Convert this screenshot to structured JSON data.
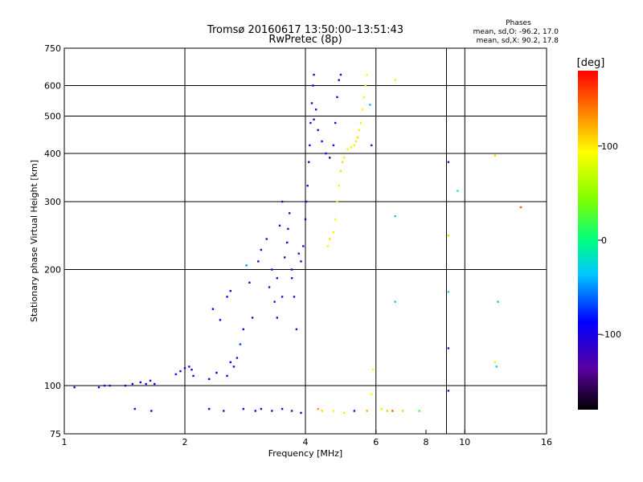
{
  "header": {
    "title_line1": "Tromsø 20160617 13:50:00–13:51:43",
    "title_line2": "RwPretec (8p)",
    "phases_title": "Phases",
    "phases_o": "mean, sd,O: -96.2, 17.0",
    "phases_x": "mean, sd,X:  90.2, 17.8"
  },
  "colorbar": {
    "unit_label": "[deg]",
    "tick_labels": [
      "100",
      "0",
      "-100"
    ],
    "tick_values": [
      100,
      0,
      -100
    ],
    "range": [
      -180,
      180
    ]
  },
  "chart_data": {
    "type": "scatter",
    "title": "Tromsø 20160617 13:50:00–13:51:43",
    "subtitle": "RwPretec (8p)",
    "xlabel": "Frequency [MHz]",
    "ylabel": "Stationary phase Virtual Height [km]",
    "xscale": "log",
    "yscale": "log",
    "xlim": [
      1,
      16
    ],
    "ylim": [
      75,
      750
    ],
    "xticks": [
      1,
      2,
      4,
      6,
      8,
      10,
      16
    ],
    "yticks": [
      75,
      100,
      200,
      300,
      400,
      500,
      600,
      750
    ],
    "xgrid": [
      2,
      4,
      6,
      9,
      10
    ],
    "ygrid": [
      100,
      200,
      300,
      400,
      500,
      600
    ],
    "color_by": "phase [deg]",
    "series": [
      {
        "values": [
          [
            1.06,
            99,
            -105
          ],
          [
            1.22,
            99,
            -105
          ],
          [
            1.26,
            100,
            -110
          ],
          [
            1.3,
            100,
            -100
          ],
          [
            1.42,
            100,
            -105
          ],
          [
            1.48,
            101,
            -100
          ],
          [
            1.55,
            102,
            -95
          ],
          [
            1.6,
            101,
            -100
          ],
          [
            1.64,
            103,
            -110
          ],
          [
            1.68,
            101,
            -100
          ],
          [
            1.5,
            87,
            -115
          ],
          [
            1.65,
            86,
            -100
          ],
          [
            1.9,
            107,
            -100
          ],
          [
            1.95,
            109,
            -105
          ],
          [
            2.0,
            111,
            -95
          ],
          [
            2.05,
            112,
            -105
          ],
          [
            2.08,
            110,
            -100
          ],
          [
            2.1,
            106,
            -110
          ],
          [
            2.3,
            104,
            -100
          ],
          [
            2.4,
            108,
            -95
          ],
          [
            2.6,
            115,
            -85
          ],
          [
            2.7,
            118,
            -80
          ],
          [
            2.55,
            106,
            -105
          ],
          [
            2.65,
            112,
            -100
          ],
          [
            2.35,
            158,
            -90
          ],
          [
            2.45,
            148,
            -85
          ],
          [
            2.55,
            170,
            -100
          ],
          [
            2.6,
            176,
            -95
          ],
          [
            2.75,
            128,
            -70
          ],
          [
            2.8,
            140,
            -90
          ],
          [
            2.9,
            185,
            -100
          ],
          [
            2.95,
            150,
            -105
          ],
          [
            2.85,
            205,
            -50
          ],
          [
            3.05,
            210,
            -110
          ],
          [
            3.1,
            225,
            -115
          ],
          [
            3.2,
            240,
            -115
          ],
          [
            3.25,
            180,
            -120
          ],
          [
            3.3,
            200,
            -115
          ],
          [
            3.35,
            165,
            -120
          ],
          [
            3.4,
            190,
            -120
          ],
          [
            3.45,
            260,
            -120
          ],
          [
            3.5,
            300,
            -115
          ],
          [
            3.55,
            215,
            -120
          ],
          [
            3.6,
            235,
            -115
          ],
          [
            3.62,
            255,
            -120
          ],
          [
            3.65,
            280,
            -115
          ],
          [
            3.7,
            200,
            -110
          ],
          [
            3.75,
            170,
            -120
          ],
          [
            3.8,
            140,
            -120
          ],
          [
            3.85,
            220,
            -115
          ],
          [
            3.9,
            210,
            -110
          ],
          [
            3.95,
            230,
            -105
          ],
          [
            4.0,
            270,
            -105
          ],
          [
            4.02,
            300,
            -105
          ],
          [
            4.05,
            330,
            -100
          ],
          [
            4.08,
            380,
            -100
          ],
          [
            4.1,
            420,
            -100
          ],
          [
            4.12,
            480,
            -105
          ],
          [
            4.15,
            540,
            -105
          ],
          [
            4.18,
            600,
            -100
          ],
          [
            4.2,
            640,
            -105
          ],
          [
            4.25,
            520,
            -100
          ],
          [
            4.3,
            460,
            -100
          ],
          [
            4.4,
            430,
            -105
          ],
          [
            4.5,
            400,
            -100
          ],
          [
            4.6,
            390,
            -100
          ],
          [
            4.7,
            420,
            -105
          ],
          [
            4.75,
            480,
            -100
          ],
          [
            4.8,
            560,
            -105
          ],
          [
            4.85,
            620,
            -100
          ],
          [
            4.9,
            640,
            -105
          ],
          [
            4.2,
            490,
            -100
          ],
          [
            3.5,
            170,
            -120
          ],
          [
            3.4,
            150,
            -115
          ],
          [
            3.7,
            190,
            -110
          ],
          [
            4.55,
            230,
            100
          ],
          [
            4.6,
            240,
            105
          ],
          [
            4.7,
            250,
            100
          ],
          [
            4.75,
            270,
            95
          ],
          [
            4.8,
            300,
            100
          ],
          [
            4.85,
            330,
            100
          ],
          [
            4.9,
            360,
            105
          ],
          [
            5.0,
            390,
            100
          ],
          [
            5.1,
            410,
            95
          ],
          [
            5.2,
            415,
            100
          ],
          [
            5.3,
            420,
            100
          ],
          [
            5.4,
            440,
            105
          ],
          [
            5.5,
            480,
            100
          ],
          [
            5.55,
            520,
            95
          ],
          [
            5.6,
            560,
            100
          ],
          [
            5.65,
            600,
            100
          ],
          [
            5.7,
            640,
            95
          ],
          [
            5.45,
            460,
            100
          ],
          [
            5.35,
            430,
            100
          ],
          [
            4.95,
            380,
            105
          ],
          [
            6.7,
            620,
            100
          ],
          [
            5.9,
            110,
            95
          ],
          [
            5.85,
            95,
            90
          ],
          [
            9.1,
            380,
            -130
          ],
          [
            9.6,
            320,
            -10
          ],
          [
            6.7,
            275,
            -30
          ],
          [
            9.1,
            245,
            110
          ],
          [
            6.7,
            165,
            -30
          ],
          [
            9.1,
            175,
            -30
          ],
          [
            12.1,
            165,
            -30
          ],
          [
            9.1,
            125,
            -140
          ],
          [
            11.9,
            115,
            100
          ],
          [
            12.0,
            112,
            -30
          ],
          [
            13.8,
            290,
            150
          ],
          [
            11.9,
            395,
            110
          ],
          [
            9.1,
            97,
            -120
          ],
          [
            5.8,
            535,
            -40
          ],
          [
            5.85,
            420,
            -130
          ],
          [
            2.8,
            87,
            -110
          ],
          [
            3.0,
            86,
            -100
          ],
          [
            3.3,
            86,
            -115
          ],
          [
            3.5,
            87,
            -110
          ],
          [
            3.7,
            86,
            -130
          ],
          [
            3.9,
            85,
            -100
          ],
          [
            4.3,
            87,
            130
          ],
          [
            4.4,
            86,
            110
          ],
          [
            4.7,
            86,
            90
          ],
          [
            5.0,
            85,
            100
          ],
          [
            5.3,
            86,
            -100
          ],
          [
            5.7,
            86,
            120
          ],
          [
            6.2,
            87,
            100
          ],
          [
            6.4,
            86,
            110
          ],
          [
            6.6,
            86,
            150
          ],
          [
            7.0,
            86,
            60
          ],
          [
            7.7,
            86,
            20
          ],
          [
            2.3,
            87,
            -110
          ],
          [
            2.5,
            86,
            -120
          ],
          [
            3.1,
            87,
            -115
          ]
        ]
      }
    ]
  }
}
